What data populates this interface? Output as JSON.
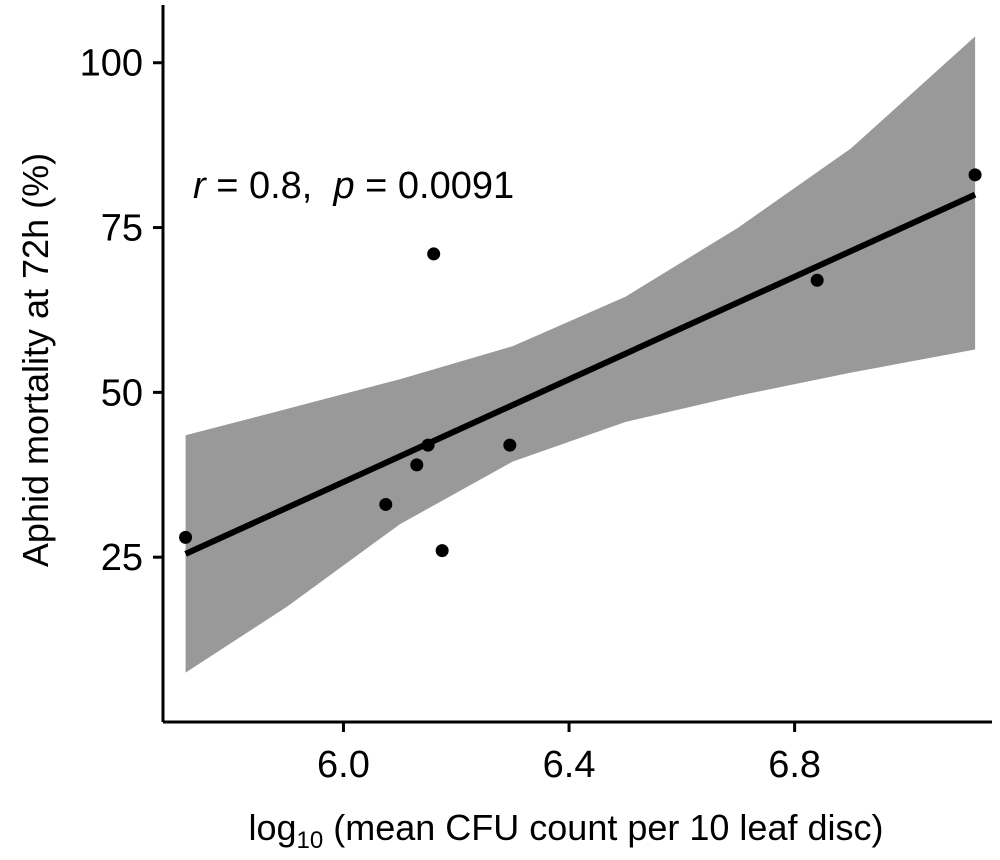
{
  "chart_data": {
    "type": "scatter",
    "title": "",
    "xlabel": {
      "prefix": "log",
      "subscript": "10",
      "suffix": " (mean CFU count per 10 leaf disc)"
    },
    "ylabel": "Aphid mortality at 72h (%)",
    "xlim": [
      5.68,
      7.15
    ],
    "ylim": [
      0,
      108
    ],
    "xticks": [
      {
        "value": 6.0,
        "label": "6.0"
      },
      {
        "value": 6.4,
        "label": "6.4"
      },
      {
        "value": 6.8,
        "label": "6.8"
      }
    ],
    "yticks": [
      {
        "value": 25,
        "label": "25"
      },
      {
        "value": 50,
        "label": "50"
      },
      {
        "value": 75,
        "label": "75"
      },
      {
        "value": 100,
        "label": "100"
      }
    ],
    "grid": false,
    "points": [
      {
        "x": 5.72,
        "y": 28
      },
      {
        "x": 6.075,
        "y": 33
      },
      {
        "x": 6.13,
        "y": 39
      },
      {
        "x": 6.15,
        "y": 42
      },
      {
        "x": 6.16,
        "y": 71
      },
      {
        "x": 6.175,
        "y": 26
      },
      {
        "x": 6.295,
        "y": 42
      },
      {
        "x": 6.84,
        "y": 67
      },
      {
        "x": 7.12,
        "y": 83
      }
    ],
    "regression_line": {
      "x": [
        5.72,
        7.12
      ],
      "y": [
        25.5,
        80
      ]
    },
    "confidence_band": {
      "x": [
        5.72,
        5.9,
        6.1,
        6.3,
        6.5,
        6.7,
        6.9,
        7.12
      ],
      "lower": [
        7.5,
        17.5,
        30,
        39.5,
        45.5,
        49.5,
        53,
        56.5
      ],
      "upper": [
        43.5,
        47.5,
        52,
        57,
        64.5,
        75,
        87,
        104
      ]
    },
    "annotation": {
      "r_symbol": "r",
      "r_text": " = 0.8,  ",
      "p_symbol": "p",
      "p_text": " = 0.0091"
    },
    "colors": {
      "band": "#999999",
      "line": "#000000",
      "points": "#000000",
      "axis": "#000000"
    }
  }
}
